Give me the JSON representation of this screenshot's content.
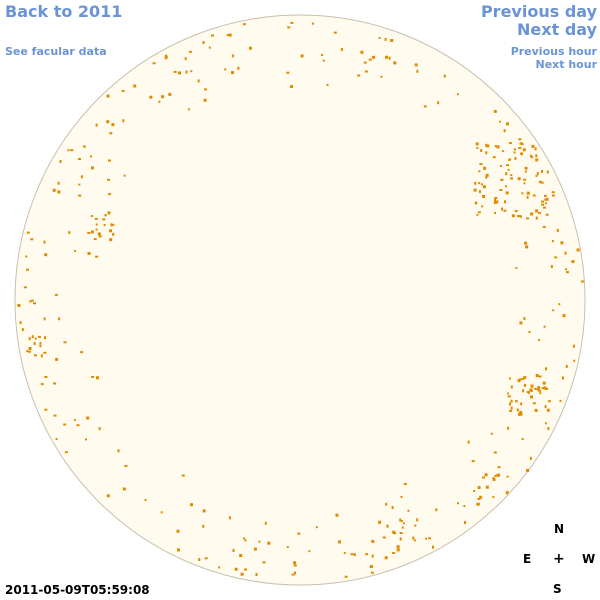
{
  "nav": {
    "back_label": "Back to 2011",
    "facular_label": "See facular data",
    "prev_day_label": "Previous day",
    "next_day_label": "Next day",
    "prev_hour_label": "Previous hour",
    "next_hour_label": "Next hour"
  },
  "compass": {
    "north": "N",
    "south": "S",
    "east": "E",
    "west": "W",
    "center": "+"
  },
  "timestamp": "2011-05-09T05:59:08",
  "colors": {
    "disk_fill": "#fffbef",
    "disk_edge": "#c8c0b0",
    "spot": "#e08a00"
  }
}
